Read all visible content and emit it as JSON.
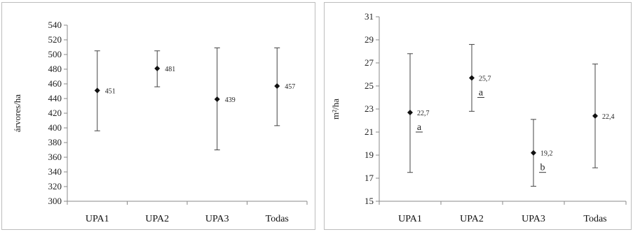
{
  "chart_data": [
    {
      "type": "scatter",
      "categories": [
        "UPA1",
        "UPA2",
        "UPA3",
        "Todas"
      ],
      "ylabel": "árvores/ha",
      "ylim": [
        300,
        540
      ],
      "yticks": [
        300,
        320,
        340,
        360,
        380,
        400,
        420,
        440,
        460,
        480,
        500,
        520,
        540
      ],
      "values": [
        451,
        481,
        439,
        457
      ],
      "err_low": [
        396,
        456,
        370,
        403
      ],
      "err_high": [
        505,
        505,
        509,
        509
      ],
      "value_labels": [
        "451",
        "481",
        "439",
        "457"
      ],
      "group_labels": [
        "",
        "",
        "",
        ""
      ],
      "grid": false,
      "colors": {
        "marker": "#111111",
        "errorbar": "#444444",
        "axis": "#888888"
      }
    },
    {
      "type": "scatter",
      "categories": [
        "UPA1",
        "UPA2",
        "UPA3",
        "Todas"
      ],
      "ylabel": "m²/ha",
      "ylim": [
        15,
        31
      ],
      "yticks": [
        15,
        17,
        19,
        21,
        23,
        25,
        27,
        29,
        31
      ],
      "values": [
        22.7,
        25.7,
        19.2,
        22.4
      ],
      "err_low": [
        17.5,
        22.8,
        16.3,
        17.9
      ],
      "err_high": [
        27.8,
        28.6,
        22.1,
        26.9
      ],
      "value_labels": [
        "22,7",
        "25,7",
        "19,2",
        "22,4"
      ],
      "group_labels": [
        "a",
        "a",
        "b",
        ""
      ],
      "grid": false,
      "colors": {
        "marker": "#111111",
        "errorbar": "#444444",
        "axis": "#888888"
      }
    }
  ]
}
